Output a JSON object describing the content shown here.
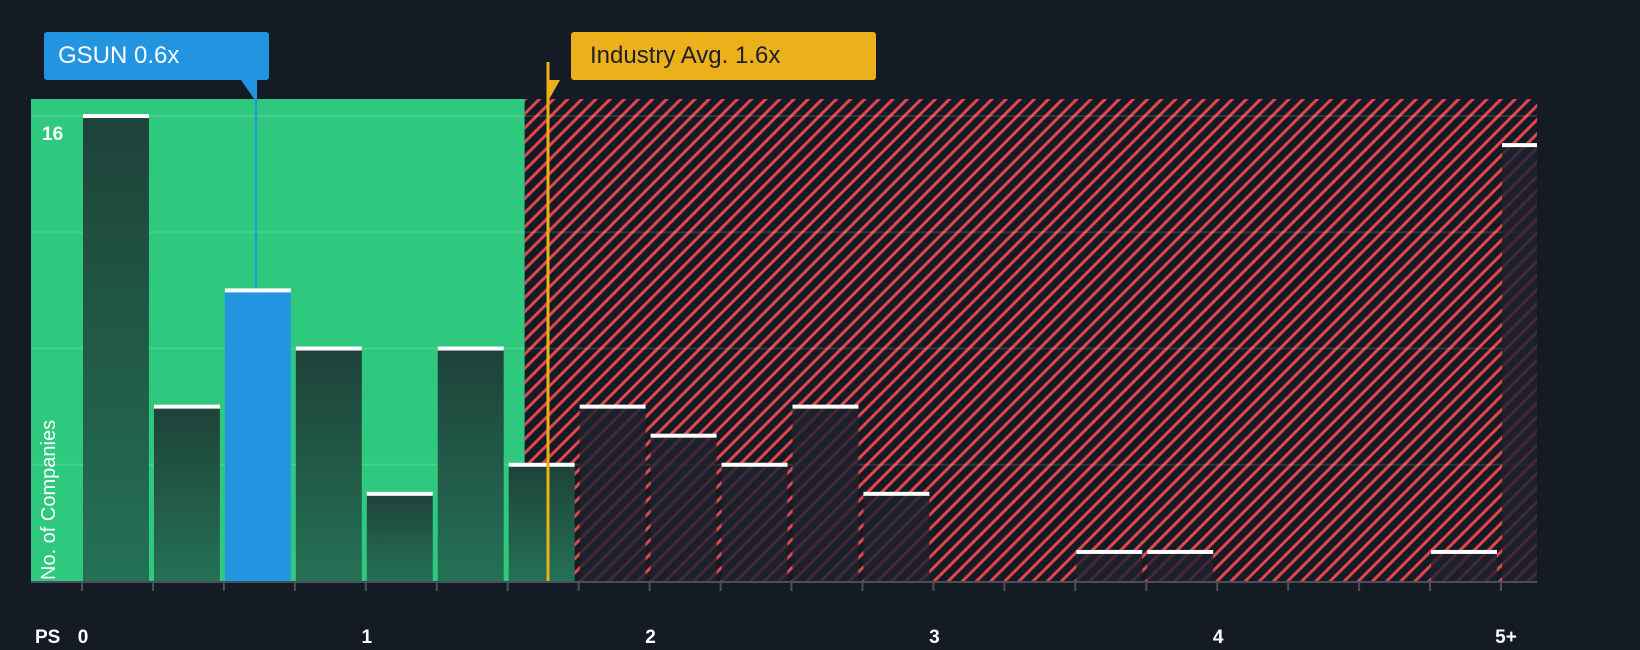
{
  "callouts": {
    "company": {
      "label": "GSUN 0.6x",
      "value": 0.6,
      "color": "#2394df"
    },
    "industry": {
      "label": "Industry Avg. 1.6x",
      "value": 1.6,
      "color": "#ecb11a"
    }
  },
  "axes": {
    "y_label": "No. of Companies",
    "y_tick_label": "16",
    "x_unit": "PS",
    "x_ticks": [
      {
        "label": "0",
        "value": 0
      },
      {
        "label": "1",
        "value": 1
      },
      {
        "label": "2",
        "value": 2
      },
      {
        "label": "3",
        "value": 3
      },
      {
        "label": "4",
        "value": 4
      },
      {
        "label": "5+",
        "value": 5
      }
    ]
  },
  "colors": {
    "background": "#151b24",
    "undervalued_zone": "#2ec97f",
    "overvalued_hatch": "#e0474c",
    "bar_dark": "#1f4a3f",
    "company_bar": "#2394df",
    "bar_top": "#ffffff"
  },
  "chart_data": {
    "type": "bar",
    "title": "",
    "xlabel": "PS",
    "ylabel": "No. of Companies",
    "bin_width": 0.25,
    "categories": [
      "0-0.25",
      "0.25-0.5",
      "0.5-0.75",
      "0.75-1.0",
      "1.0-1.25",
      "1.25-1.5",
      "1.5-1.75",
      "1.75-2.0",
      "2.0-2.25",
      "2.25-2.5",
      "2.5-2.75",
      "2.75-3.0",
      "3.0-3.25",
      "3.25-3.5",
      "3.5-3.75",
      "3.75-4.0",
      "4.0-4.25",
      "4.25-4.5",
      "4.5-4.75",
      "4.75-5.0",
      "5+"
    ],
    "values": [
      16,
      6,
      10,
      8,
      3,
      8,
      4,
      6,
      5,
      4,
      6,
      3,
      0,
      0,
      1,
      1,
      0,
      0,
      0,
      1,
      15
    ],
    "highlight_bin_index": 2,
    "highlight_label": "GSUN 0.6x",
    "reference_lines": [
      {
        "label": "GSUN 0.6x",
        "x": 0.6
      },
      {
        "label": "Industry Avg. 1.6x",
        "x": 1.6
      }
    ],
    "zones": [
      {
        "name": "undervalued",
        "from": 0,
        "to": 1.56,
        "style": "solid green"
      },
      {
        "name": "overvalued",
        "from": 1.56,
        "to": 5.125,
        "style": "red hatch"
      }
    ],
    "ylim": [
      0,
      16.6
    ],
    "yticks_shown": [
      16
    ],
    "grid": true,
    "legend": "none"
  }
}
